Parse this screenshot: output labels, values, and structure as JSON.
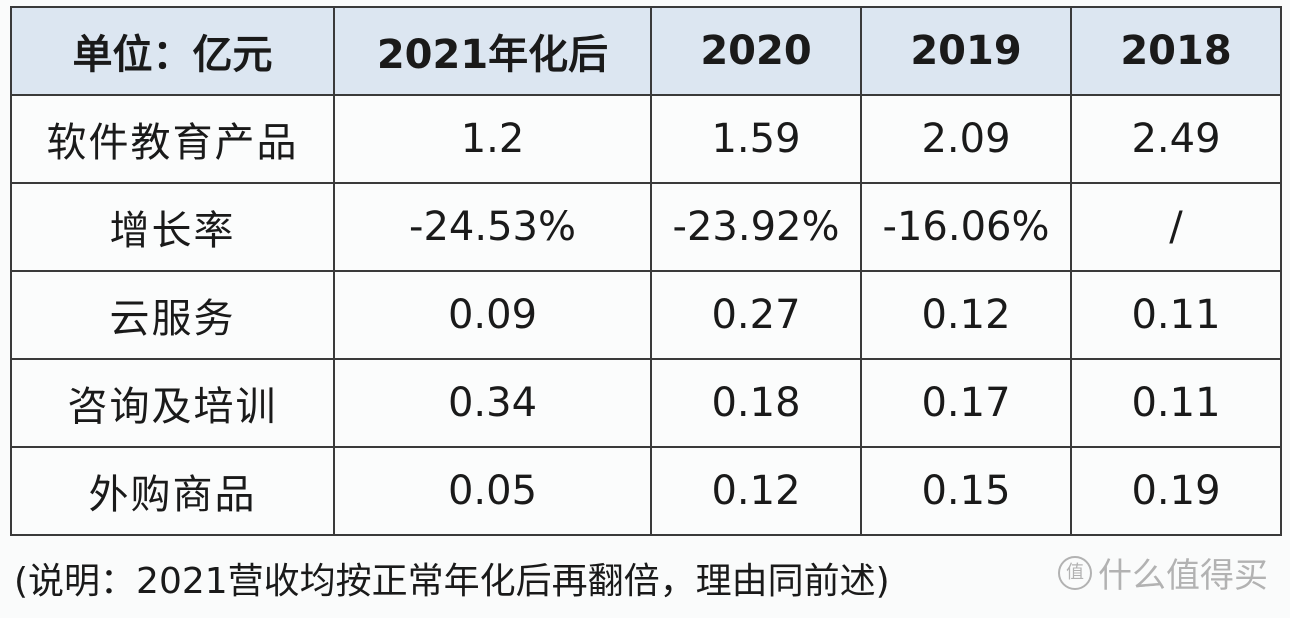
{
  "table": {
    "headers": [
      "单位：亿元",
      "2021年化后",
      "2020",
      "2019",
      "2018"
    ],
    "rows": [
      {
        "label": "软件教育产品",
        "values": [
          "1.2",
          "1.59",
          "2.09",
          "2.49"
        ]
      },
      {
        "label": "增长率",
        "values": [
          "-24.53%",
          "-23.92%",
          "-16.06%",
          "/"
        ]
      },
      {
        "label": "云服务",
        "values": [
          "0.09",
          "0.27",
          "0.12",
          "0.11"
        ]
      },
      {
        "label": "咨询及培训",
        "values": [
          "0.34",
          "0.18",
          "0.17",
          "0.11"
        ]
      },
      {
        "label": "外购商品",
        "values": [
          "0.05",
          "0.12",
          "0.15",
          "0.19"
        ]
      }
    ]
  },
  "note": "(说明：2021营收均按正常年化后再翻倍，理由同前述)",
  "watermark": {
    "icon": "值",
    "text": "什么值得买"
  },
  "colors": {
    "header_bg": "#dce6f1",
    "border": "#3a3a3a"
  }
}
